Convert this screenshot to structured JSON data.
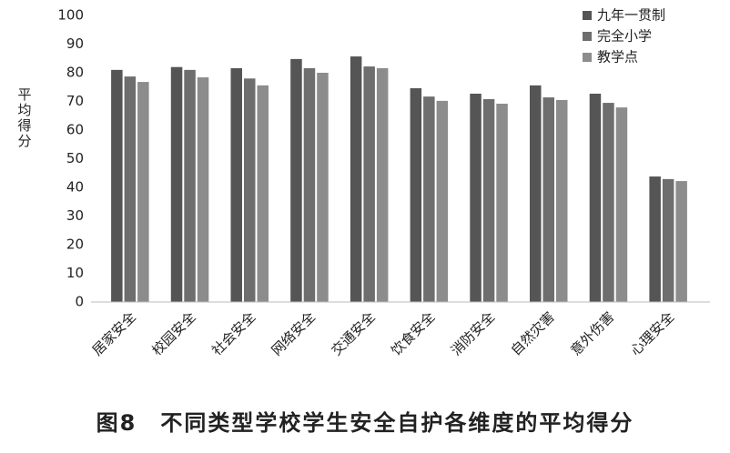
{
  "chart_data": {
    "type": "bar",
    "title": "图8　不同类型学校学生安全自护各维度的平均得分",
    "y_label": "平均得分",
    "categories": [
      "居家安全",
      "校园安全",
      "社会安全",
      "网络安全",
      "交通安全",
      "饮食安全",
      "消防安全",
      "自然灾害",
      "意外伤害",
      "心理安全"
    ],
    "series": [
      {
        "name": "九年一贯制",
        "color": "#555555",
        "values": [
          81,
          82,
          81.6,
          84.8,
          85.7,
          74.6,
          72.7,
          75.6,
          72.7,
          43.8
        ]
      },
      {
        "name": "完全小学",
        "color": "#6e6e6e",
        "values": [
          78.7,
          81,
          78,
          81.6,
          82.2,
          71.7,
          70.8,
          71.4,
          69.5,
          42.9
        ]
      },
      {
        "name": "教学点",
        "color": "#8c8c8c",
        "values": [
          76.8,
          78.4,
          75.6,
          80,
          81.6,
          70.2,
          69.2,
          70.5,
          67.9,
          42.2
        ]
      }
    ],
    "ylim": [
      0,
      100
    ],
    "yticks": [
      0,
      10,
      20,
      30,
      40,
      50,
      60,
      70,
      80,
      90,
      100
    ],
    "grid": false,
    "legend": "top-right"
  }
}
